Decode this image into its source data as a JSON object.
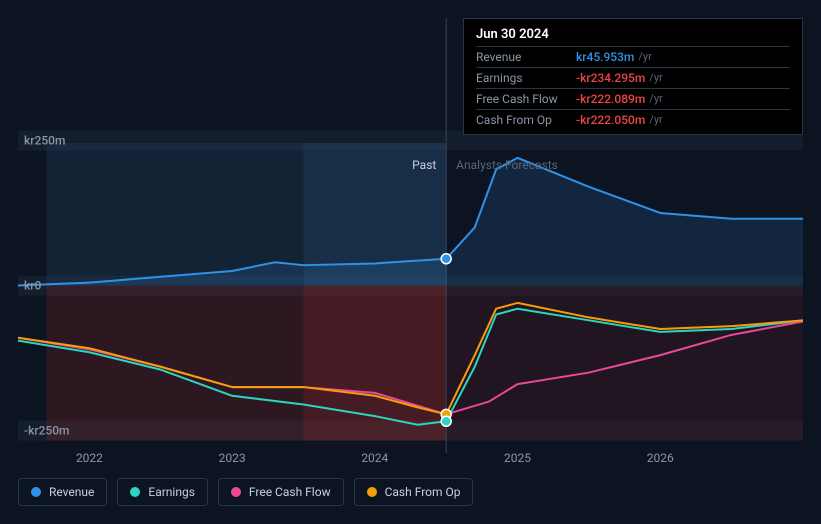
{
  "chart": {
    "type": "line-area",
    "background_color": "#0d1421",
    "grid_color": "#1e2838",
    "divider_color": "#3a4558",
    "y_axis": {
      "min": -280,
      "max": 280,
      "ticks": [
        {
          "value": 250,
          "label": "kr250m"
        },
        {
          "value": 0,
          "label": "kr0"
        },
        {
          "value": -250,
          "label": "-kr250m"
        }
      ]
    },
    "x_axis": {
      "min": 2021.5,
      "max": 2027,
      "ticks": [
        2022,
        2023,
        2024,
        2025,
        2026
      ],
      "today": 2024.5
    },
    "past_label": "Past",
    "forecast_label": "Analysts Forecasts",
    "past_shading_top": "rgba(40,80,120,0.25)",
    "past_shading_bot": "rgba(160,40,40,0.22)",
    "series": [
      {
        "id": "revenue",
        "name": "Revenue",
        "color": "#2e93e8",
        "fill_opacity": 0.15,
        "line_width": 2,
        "x": [
          2021.5,
          2022,
          2022.5,
          2023,
          2023.3,
          2023.5,
          2024,
          2024.5,
          2024.7,
          2024.85,
          2025,
          2025.5,
          2026,
          2026.5,
          2027
        ],
        "y": [
          0,
          5,
          15,
          25,
          40,
          35,
          38,
          46,
          100,
          200,
          220,
          170,
          125,
          115,
          115
        ]
      },
      {
        "id": "earnings",
        "name": "Earnings",
        "color": "#2dd4bf",
        "fill_opacity": 0,
        "line_width": 2,
        "x": [
          2021.5,
          2022,
          2022.5,
          2023,
          2023.5,
          2024,
          2024.3,
          2024.5,
          2024.7,
          2024.85,
          2025,
          2025.5,
          2026,
          2026.5,
          2027
        ],
        "y": [
          -95,
          -115,
          -145,
          -190,
          -205,
          -225,
          -240,
          -234,
          -140,
          -50,
          -40,
          -60,
          -80,
          -75,
          -60
        ]
      },
      {
        "id": "free_cash_flow",
        "name": "Free Cash Flow",
        "color": "#ec4899",
        "fill_opacity": 0,
        "line_width": 2,
        "x": [
          2021.5,
          2022,
          2022.5,
          2023,
          2023.5,
          2024,
          2024.5,
          2024.8,
          2025,
          2025.5,
          2026,
          2026.5,
          2027
        ],
        "y": [
          -90,
          -110,
          -140,
          -175,
          -175,
          -185,
          -222,
          -200,
          -170,
          -150,
          -120,
          -85,
          -62
        ]
      },
      {
        "id": "cash_from_op",
        "name": "Cash From Op",
        "color": "#f59e0b",
        "fill_opacity": 0,
        "line_width": 2,
        "x": [
          2021.5,
          2022,
          2022.5,
          2023,
          2023.5,
          2024,
          2024.3,
          2024.5,
          2024.7,
          2024.85,
          2025,
          2025.5,
          2026,
          2026.5,
          2027
        ],
        "y": [
          -90,
          -108,
          -140,
          -175,
          -175,
          -190,
          -210,
          -222,
          -120,
          -40,
          -30,
          -55,
          -75,
          -70,
          -60
        ]
      }
    ],
    "marker_radius": 4,
    "today_markers": [
      {
        "series": "revenue",
        "value": 46
      },
      {
        "series": "cash_from_op",
        "value": -222
      },
      {
        "series": "earnings",
        "value": -234
      }
    ]
  },
  "tooltip": {
    "date": "Jun 30 2024",
    "rows": [
      {
        "label": "Revenue",
        "value": "kr45.953m",
        "color": "#2e93e8",
        "suffix": "/yr"
      },
      {
        "label": "Earnings",
        "value": "-kr234.295m",
        "color": "#ef4444",
        "suffix": "/yr"
      },
      {
        "label": "Free Cash Flow",
        "value": "-kr222.089m",
        "color": "#ef4444",
        "suffix": "/yr"
      },
      {
        "label": "Cash From Op",
        "value": "-kr222.050m",
        "color": "#ef4444",
        "suffix": "/yr"
      }
    ]
  },
  "legend": {
    "items": [
      {
        "id": "revenue",
        "label": "Revenue",
        "color": "#2e93e8"
      },
      {
        "id": "earnings",
        "label": "Earnings",
        "color": "#2dd4bf"
      },
      {
        "id": "free_cash_flow",
        "label": "Free Cash Flow",
        "color": "#ec4899"
      },
      {
        "id": "cash_from_op",
        "label": "Cash From Op",
        "color": "#f59e0b"
      }
    ]
  }
}
